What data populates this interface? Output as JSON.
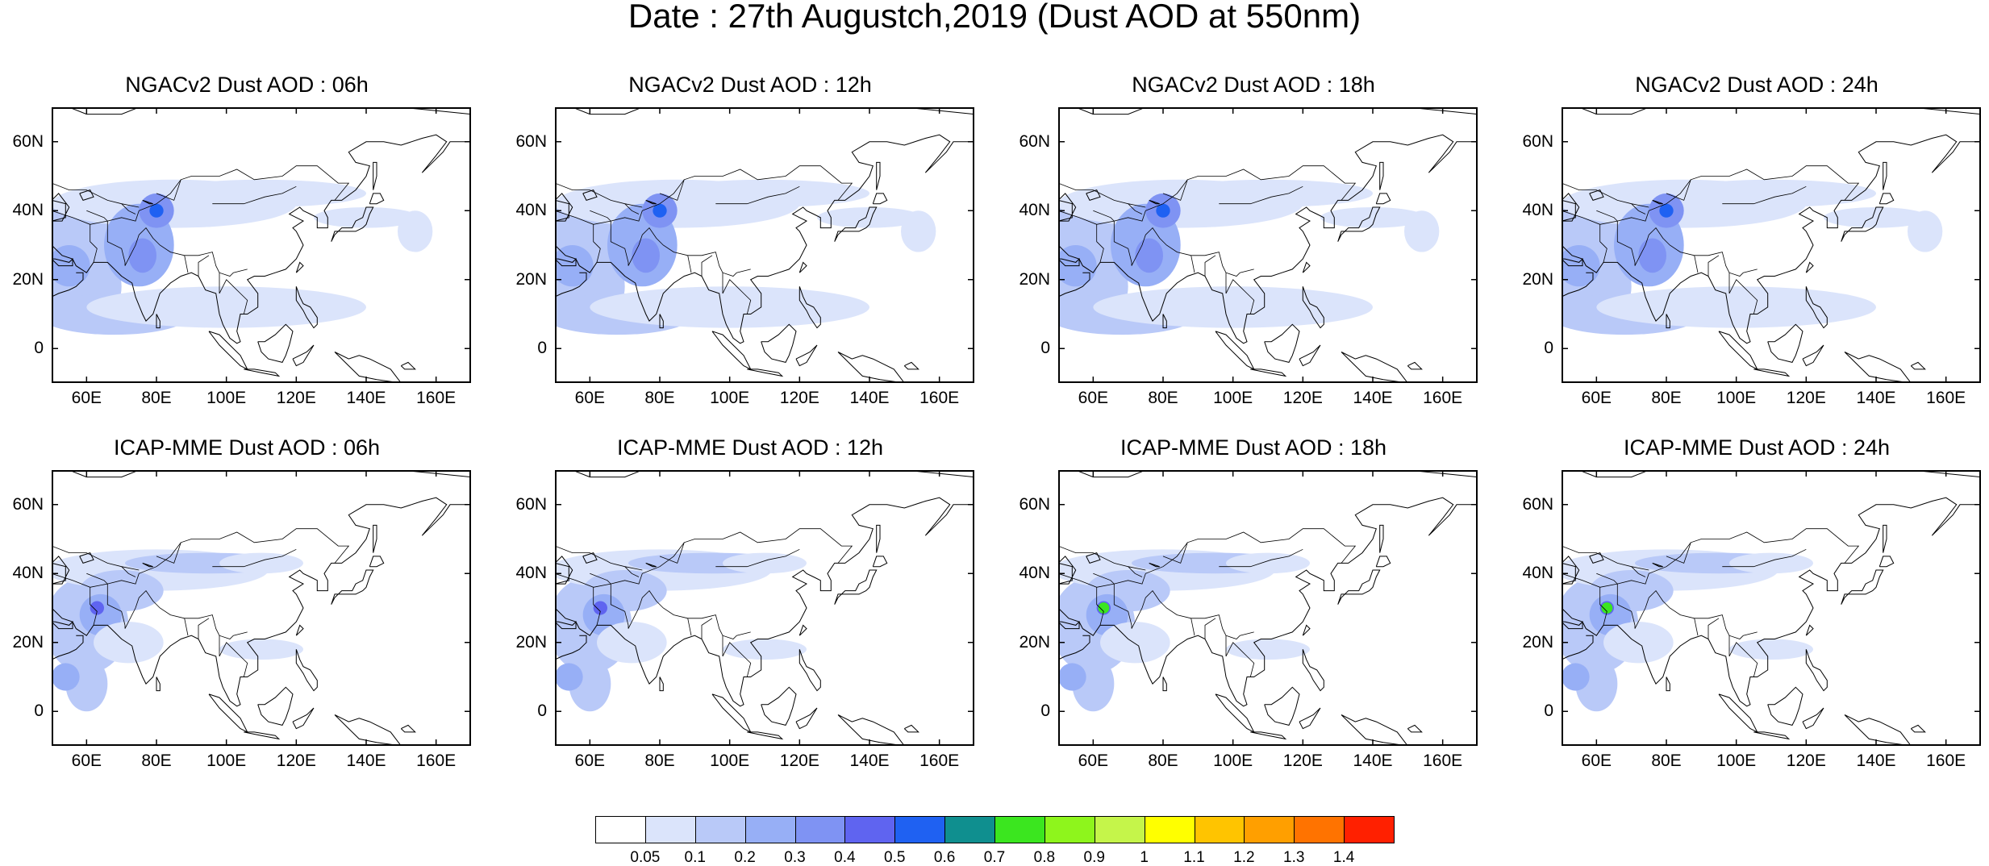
{
  "title": "Date : 27th Augustch,2019 (Dust AOD at 550nm)",
  "panels": [
    {
      "title": "NGACv2 Dust AOD : 06h",
      "model": "ngac",
      "hour": "06"
    },
    {
      "title": "NGACv2 Dust AOD : 12h",
      "model": "ngac",
      "hour": "12"
    },
    {
      "title": "NGACv2 Dust AOD : 18h",
      "model": "ngac",
      "hour": "18"
    },
    {
      "title": "NGACv2 Dust AOD : 24h",
      "model": "ngac",
      "hour": "24"
    },
    {
      "title": "ICAP-MME Dust AOD : 06h",
      "model": "icap",
      "hour": "06"
    },
    {
      "title": "ICAP-MME Dust AOD : 12h",
      "model": "icap",
      "hour": "12"
    },
    {
      "title": "ICAP-MME Dust AOD : 18h",
      "model": "icap",
      "hour": "18"
    },
    {
      "title": "ICAP-MME Dust AOD : 24h",
      "model": "icap",
      "hour": "24"
    }
  ],
  "axes": {
    "lon_range": [
      50,
      170
    ],
    "lat_range": [
      -10,
      70
    ],
    "x_ticks": [
      "60E",
      "80E",
      "100E",
      "120E",
      "140E",
      "160E"
    ],
    "x_tick_values": [
      60,
      80,
      100,
      120,
      140,
      160
    ],
    "y_ticks": [
      "60N",
      "40N",
      "20N",
      "0"
    ],
    "y_tick_values": [
      60,
      40,
      20,
      0
    ]
  },
  "colorbar": {
    "labels": [
      "0.05",
      "0.1",
      "0.2",
      "0.3",
      "0.4",
      "0.5",
      "0.6",
      "0.7",
      "0.8",
      "0.9",
      "1",
      "1.1",
      "1.2",
      "1.3",
      "1.4"
    ],
    "colors": [
      "#ffffff",
      "#dbe4fb",
      "#b9c9f8",
      "#97aff6",
      "#7f93f3",
      "#5f64f0",
      "#1f61f2",
      "#0f8f8f",
      "#3be61f",
      "#8ef51c",
      "#c5f54a",
      "#ffff00",
      "#ffc400",
      "#ff9f00",
      "#ff7300",
      "#ff2000"
    ]
  }
}
